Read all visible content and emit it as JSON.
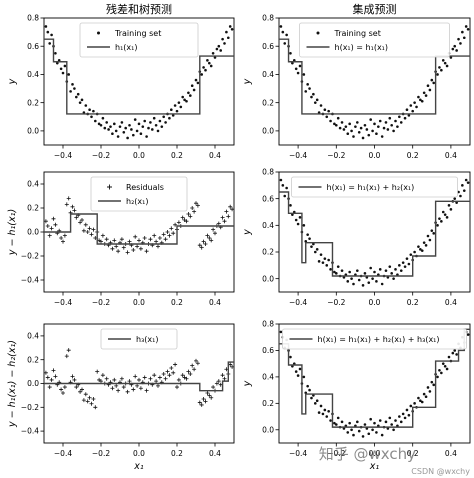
{
  "figure": {
    "col_titles": [
      "残差和树预测",
      "集成预测"
    ],
    "watermark": "知乎 @wxchy",
    "credit": "CSDN @wxchy"
  },
  "chart_data": [
    {
      "id": "p11",
      "type": "scatter",
      "title": "",
      "ylabel": "y",
      "xlabel": "",
      "xlim": [
        -0.5,
        0.5
      ],
      "ylim": [
        -0.1,
        0.8
      ],
      "xticks": [
        -0.4,
        -0.2,
        0.0,
        0.2,
        0.4
      ],
      "xtick_labels": [
        "−0.4",
        "−0.2",
        "0.0",
        "0.2",
        "0.4"
      ],
      "yticks": [
        0.0,
        0.2,
        0.4,
        0.6,
        0.8
      ],
      "ytick_labels": [
        "0.0",
        "0.2",
        "0.4",
        "0.6",
        "0.8"
      ],
      "legend": [
        "Training set",
        "h₁(x₁)"
      ],
      "legend_position": "top-center",
      "step_edges": [
        -0.5,
        -0.45,
        -0.38,
        0.32,
        0.5
      ],
      "step_values": [
        0.65,
        0.49,
        0.12,
        0.53
      ]
    },
    {
      "id": "p12",
      "type": "scatter",
      "title": "",
      "ylabel": "y",
      "xlabel": "",
      "xlim": [
        -0.5,
        0.5
      ],
      "ylim": [
        -0.1,
        0.8
      ],
      "xticks": [
        -0.4,
        -0.2,
        0.0,
        0.2,
        0.4
      ],
      "xtick_labels": [
        "−0.4",
        "−0.2",
        "0.0",
        "0.2",
        "0.4"
      ],
      "yticks": [
        0.0,
        0.2,
        0.4,
        0.6,
        0.8
      ],
      "ytick_labels": [
        "0.0",
        "0.2",
        "0.4",
        "0.6",
        "0.8"
      ],
      "legend": [
        "Training set",
        "h(x₁) = h₁(x₁)"
      ],
      "legend_position": "top-center",
      "step_edges": [
        -0.5,
        -0.45,
        -0.38,
        0.32,
        0.5
      ],
      "step_values": [
        0.65,
        0.49,
        0.12,
        0.53
      ]
    },
    {
      "id": "p21",
      "type": "scatter",
      "title": "",
      "ylabel": "y − h₁(x₁)",
      "xlabel": "",
      "xlim": [
        -0.5,
        0.5
      ],
      "ylim": [
        -0.5,
        0.5
      ],
      "xticks": [
        -0.4,
        -0.2,
        0.0,
        0.2,
        0.4
      ],
      "xtick_labels": [
        "−0.4",
        "−0.2",
        "0.0",
        "0.2",
        "0.4"
      ],
      "yticks": [
        -0.4,
        -0.2,
        0.0,
        0.2,
        0.4
      ],
      "ytick_labels": [
        "−0.4",
        "−0.2",
        "0.0",
        "0.2",
        "0.4"
      ],
      "legend": [
        "Residuals",
        "h₂(x₁)"
      ],
      "legend_position": "top-center",
      "step_edges": [
        -0.5,
        -0.36,
        -0.22,
        0.2,
        0.5
      ],
      "step_values": [
        0.0,
        0.15,
        -0.1,
        0.05
      ]
    },
    {
      "id": "p22",
      "type": "scatter",
      "title": "",
      "ylabel": "y",
      "xlabel": "",
      "xlim": [
        -0.5,
        0.5
      ],
      "ylim": [
        -0.1,
        0.8
      ],
      "xticks": [
        -0.4,
        -0.2,
        0.0,
        0.2,
        0.4
      ],
      "xtick_labels": [
        "−0.4",
        "−0.2",
        "0.0",
        "0.2",
        "0.4"
      ],
      "yticks": [
        0.0,
        0.2,
        0.4,
        0.6,
        0.8
      ],
      "ytick_labels": [
        "0.0",
        "0.2",
        "0.4",
        "0.6",
        "0.8"
      ],
      "legend": [
        "h(x₁) = h₁(x₁) + h₂(x₁)"
      ],
      "legend_position": "top-center",
      "step_edges": [
        -0.5,
        -0.45,
        -0.38,
        -0.36,
        -0.22,
        0.2,
        0.32,
        0.5
      ],
      "step_values": [
        0.65,
        0.49,
        0.12,
        0.27,
        0.02,
        0.17,
        0.58
      ]
    },
    {
      "id": "p31",
      "type": "scatter",
      "title": "",
      "ylabel": "y − h₁(x₁) − h₂(x₁)",
      "xlabel": "x₁",
      "xlim": [
        -0.5,
        0.5
      ],
      "ylim": [
        -0.5,
        0.5
      ],
      "xticks": [
        -0.4,
        -0.2,
        0.0,
        0.2,
        0.4
      ],
      "xtick_labels": [
        "−0.4",
        "−0.2",
        "0.0",
        "0.2",
        "0.4"
      ],
      "yticks": [
        -0.4,
        -0.2,
        0.0,
        0.2,
        0.4
      ],
      "ytick_labels": [
        "−0.4",
        "−0.2",
        "0.0",
        "0.2",
        "0.4"
      ],
      "legend": [
        "h₃(x₁)"
      ],
      "legend_position": "top-center",
      "step_edges": [
        -0.5,
        0.32,
        0.44,
        0.47,
        0.5
      ],
      "step_values": [
        0.0,
        -0.06,
        0.02,
        0.18
      ]
    },
    {
      "id": "p32",
      "type": "scatter",
      "title": "",
      "ylabel": "y",
      "xlabel": "x₁",
      "xlim": [
        -0.5,
        0.5
      ],
      "ylim": [
        -0.1,
        0.8
      ],
      "xticks": [
        -0.4,
        -0.2,
        0.0,
        0.2,
        0.4
      ],
      "xtick_labels": [
        "−0.4",
        "−0.2",
        "0.0",
        "0.2",
        "0.4"
      ],
      "yticks": [
        0.0,
        0.2,
        0.4,
        0.6,
        0.8
      ],
      "ytick_labels": [
        "0.0",
        "0.2",
        "0.4",
        "0.6",
        "0.8"
      ],
      "legend": [
        "h(x₁) = h₁(x₁) + h₂(x₁) + h₃(x₁)"
      ],
      "legend_position": "top-center",
      "step_edges": [
        -0.5,
        -0.45,
        -0.38,
        -0.36,
        -0.22,
        0.2,
        0.32,
        0.44,
        0.47,
        0.5
      ],
      "step_values": [
        0.65,
        0.49,
        0.12,
        0.27,
        0.02,
        0.17,
        0.52,
        0.6,
        0.76
      ]
    }
  ],
  "samples": {
    "x": [
      -0.49,
      -0.48,
      -0.47,
      -0.46,
      -0.45,
      -0.44,
      -0.43,
      -0.42,
      -0.41,
      -0.4,
      -0.39,
      -0.38,
      -0.37,
      -0.36,
      -0.35,
      -0.34,
      -0.33,
      -0.32,
      -0.31,
      -0.3,
      -0.29,
      -0.28,
      -0.27,
      -0.26,
      -0.25,
      -0.24,
      -0.23,
      -0.22,
      -0.21,
      -0.2,
      -0.19,
      -0.18,
      -0.17,
      -0.16,
      -0.15,
      -0.14,
      -0.13,
      -0.12,
      -0.11,
      -0.1,
      -0.09,
      -0.08,
      -0.07,
      -0.06,
      -0.05,
      -0.04,
      -0.03,
      -0.02,
      -0.01,
      0.0,
      0.01,
      0.02,
      0.03,
      0.04,
      0.05,
      0.06,
      0.07,
      0.08,
      0.09,
      0.1,
      0.11,
      0.12,
      0.13,
      0.14,
      0.15,
      0.16,
      0.17,
      0.18,
      0.19,
      0.2,
      0.21,
      0.22,
      0.23,
      0.24,
      0.25,
      0.26,
      0.27,
      0.28,
      0.29,
      0.3,
      0.31,
      0.32,
      0.33,
      0.34,
      0.35,
      0.36,
      0.37,
      0.38,
      0.39,
      0.4,
      0.41,
      0.42,
      0.43,
      0.44,
      0.45,
      0.46,
      0.47,
      0.48,
      0.49
    ],
    "y": [
      0.74,
      0.7,
      0.62,
      0.68,
      0.6,
      0.55,
      0.48,
      0.5,
      0.44,
      0.41,
      0.46,
      0.35,
      0.4,
      0.28,
      0.33,
      0.3,
      0.24,
      0.26,
      0.2,
      0.22,
      0.13,
      0.18,
      0.12,
      0.15,
      0.1,
      0.14,
      0.07,
      0.12,
      0.05,
      0.04,
      0.09,
      0.02,
      0.06,
      0.01,
      0.03,
      -0.02,
      0.05,
      0.0,
      -0.04,
      0.03,
      0.06,
      -0.01,
      0.02,
      -0.05,
      0.04,
      0.01,
      -0.03,
      0.08,
      0.0,
      0.05,
      -0.02,
      0.03,
      0.07,
      -0.04,
      0.02,
      0.06,
      0.01,
      0.09,
      0.04,
      0.0,
      0.07,
      0.03,
      0.1,
      0.06,
      0.12,
      0.09,
      0.15,
      0.11,
      0.18,
      0.14,
      0.2,
      0.17,
      0.24,
      0.22,
      0.21,
      0.27,
      0.25,
      0.32,
      0.29,
      0.36,
      0.34,
      0.42,
      0.4,
      0.45,
      0.43,
      0.5,
      0.48,
      0.46,
      0.55,
      0.52,
      0.58,
      0.6,
      0.57,
      0.65,
      0.62,
      0.7,
      0.66,
      0.74,
      0.72
    ]
  },
  "colors": {
    "ink": "#000000",
    "frame": "#000000",
    "step_line": "#444444",
    "marker": "#111111"
  }
}
